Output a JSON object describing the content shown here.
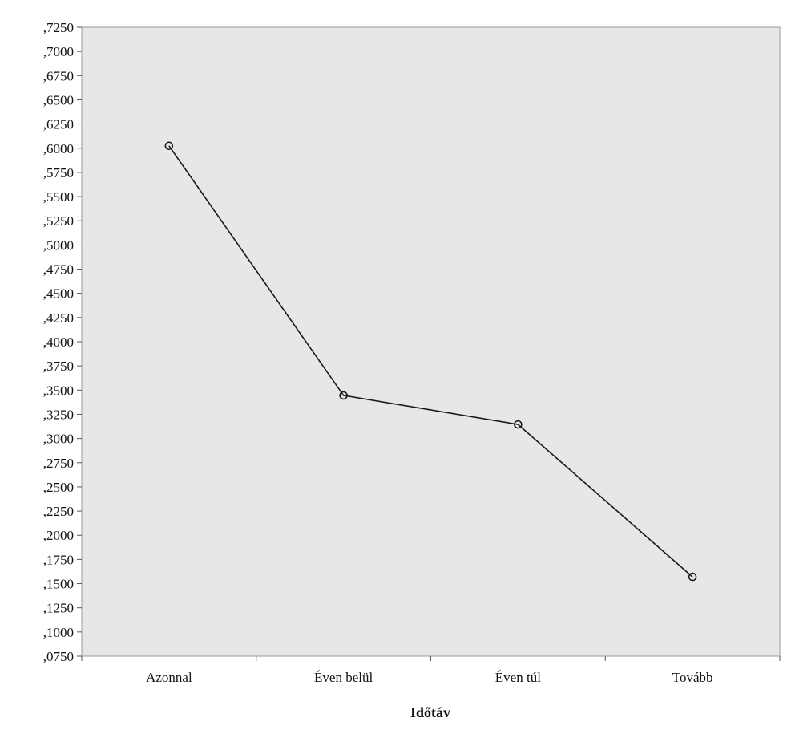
{
  "chart_data": {
    "type": "line",
    "title": "",
    "xlabel": "Időtáv",
    "ylabel": "",
    "categories": [
      "Azonnal",
      "Éven belül",
      "Éven túl",
      "Tovább"
    ],
    "series": [
      {
        "values": [
          0.6025,
          0.3445,
          0.3145,
          0.157
        ]
      }
    ],
    "ylim": [
      0.075,
      0.725
    ],
    "ytick_step": 0.025,
    "y_tick_labels": [
      ",0750",
      ",1000",
      ",1250",
      ",1500",
      ",1750",
      ",2000",
      ",2250",
      ",2500",
      ",2750",
      ",3000",
      ",3250",
      ",3500",
      ",3750",
      ",4000",
      ",4250",
      ",4500",
      ",4750",
      ",5000",
      ",5250",
      ",5500",
      ",5750",
      ",6000",
      ",6250",
      ",6500",
      ",6750",
      ",7000",
      ",7250"
    ],
    "grid": false,
    "legend": "none",
    "colors": {
      "plot_background": "#e6e7e8",
      "line": "#1a1a1a",
      "marker": "#1a1a1a"
    }
  }
}
